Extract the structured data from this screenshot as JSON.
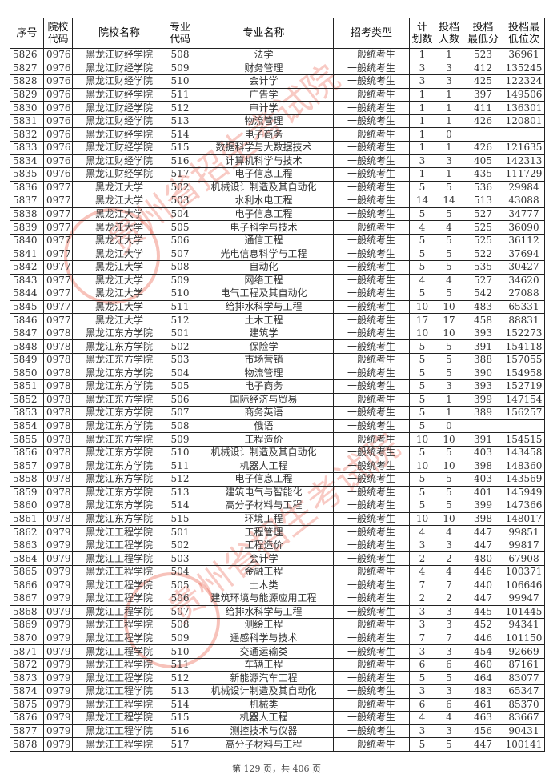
{
  "headers": [
    "序号",
    "院校\n代码",
    "院校名称",
    "专业\n代码",
    "专业名称",
    "招考类型",
    "计\n划数",
    "投档\n人数",
    "投档\n最低分",
    "投档最\n低位次"
  ],
  "rows": [
    [
      "5826",
      "0976",
      "黑龙江财经学院",
      "508",
      "法学",
      "一般统考生",
      "1",
      "1",
      "523",
      "36961"
    ],
    [
      "5827",
      "0976",
      "黑龙江财经学院",
      "509",
      "财务管理",
      "一般统考生",
      "3",
      "3",
      "412",
      "135245"
    ],
    [
      "5828",
      "0976",
      "黑龙江财经学院",
      "510",
      "会计学",
      "一般统考生",
      "3",
      "3",
      "425",
      "122324"
    ],
    [
      "5829",
      "0976",
      "黑龙江财经学院",
      "511",
      "广告学",
      "一般统考生",
      "1",
      "1",
      "397",
      "149506"
    ],
    [
      "5830",
      "0976",
      "黑龙江财经学院",
      "512",
      "审计学",
      "一般统考生",
      "1",
      "1",
      "411",
      "136301"
    ],
    [
      "5831",
      "0976",
      "黑龙江财经学院",
      "513",
      "物流管理",
      "一般统考生",
      "1",
      "1",
      "426",
      "120801"
    ],
    [
      "5832",
      "0976",
      "黑龙江财经学院",
      "514",
      "电子商务",
      "一般统考生",
      "1",
      "0",
      "",
      ""
    ],
    [
      "5833",
      "0976",
      "黑龙江财经学院",
      "515",
      "数据科学与大数据技术",
      "一般统考生",
      "1",
      "1",
      "426",
      "121635"
    ],
    [
      "5834",
      "0976",
      "黑龙江财经学院",
      "516",
      "计算机科学与技术",
      "一般统考生",
      "3",
      "3",
      "405",
      "142313"
    ],
    [
      "5835",
      "0976",
      "黑龙江财经学院",
      "517",
      "电子信息工程",
      "一般统考生",
      "1",
      "1",
      "435",
      "111729"
    ],
    [
      "5836",
      "0977",
      "黑龙江大学",
      "502",
      "机械设计制造及其自动化",
      "一般统考生",
      "5",
      "5",
      "536",
      "29984"
    ],
    [
      "5837",
      "0977",
      "黑龙江大学",
      "503",
      "水利水电工程",
      "一般统考生",
      "14",
      "14",
      "513",
      "43088"
    ],
    [
      "5838",
      "0977",
      "黑龙江大学",
      "504",
      "电子信息工程",
      "一般统考生",
      "5",
      "5",
      "527",
      "34777"
    ],
    [
      "5839",
      "0977",
      "黑龙江大学",
      "505",
      "电子科学与技术",
      "一般统考生",
      "4",
      "4",
      "525",
      "36090"
    ],
    [
      "5840",
      "0977",
      "黑龙江大学",
      "506",
      "通信工程",
      "一般统考生",
      "5",
      "5",
      "525",
      "36112"
    ],
    [
      "5841",
      "0977",
      "黑龙江大学",
      "507",
      "光电信息科学与工程",
      "一般统考生",
      "5",
      "5",
      "522",
      "37694"
    ],
    [
      "5842",
      "0977",
      "黑龙江大学",
      "508",
      "自动化",
      "一般统考生",
      "5",
      "5",
      "535",
      "30427"
    ],
    [
      "5843",
      "0977",
      "黑龙江大学",
      "509",
      "网络工程",
      "一般统考生",
      "4",
      "4",
      "527",
      "34620"
    ],
    [
      "5844",
      "0977",
      "黑龙江大学",
      "510",
      "电气工程及其自动化",
      "一般统考生",
      "5",
      "5",
      "542",
      "27088"
    ],
    [
      "5845",
      "0977",
      "黑龙江大学",
      "511",
      "给排水科学与工程",
      "一般统考生",
      "10",
      "10",
      "483",
      "65331"
    ],
    [
      "5846",
      "0977",
      "黑龙江大学",
      "512",
      "土木工程",
      "一般统考生",
      "17",
      "17",
      "458",
      "88831"
    ],
    [
      "5847",
      "0978",
      "黑龙江东方学院",
      "501",
      "建筑学",
      "一般统考生",
      "10",
      "10",
      "393",
      "152273"
    ],
    [
      "5848",
      "0978",
      "黑龙江东方学院",
      "502",
      "保险学",
      "一般统考生",
      "5",
      "5",
      "391",
      "154118"
    ],
    [
      "5849",
      "0978",
      "黑龙江东方学院",
      "503",
      "市场营销",
      "一般统考生",
      "5",
      "5",
      "388",
      "157055"
    ],
    [
      "5850",
      "0978",
      "黑龙江东方学院",
      "504",
      "物流管理",
      "一般统考生",
      "5",
      "5",
      "390",
      "154958"
    ],
    [
      "5851",
      "0978",
      "黑龙江东方学院",
      "505",
      "电子商务",
      "一般统考生",
      "5",
      "3",
      "393",
      "152719"
    ],
    [
      "5852",
      "0978",
      "黑龙江东方学院",
      "506",
      "国际经济与贸易",
      "一般统考生",
      "5",
      "1",
      "399",
      "147154"
    ],
    [
      "5853",
      "0978",
      "黑龙江东方学院",
      "507",
      "商务英语",
      "一般统考生",
      "5",
      "1",
      "389",
      "156257"
    ],
    [
      "5854",
      "0978",
      "黑龙江东方学院",
      "508",
      "俄语",
      "一般统考生",
      "5",
      "0",
      "",
      ""
    ],
    [
      "5855",
      "0978",
      "黑龙江东方学院",
      "509",
      "工程造价",
      "一般统考生",
      "10",
      "10",
      "391",
      "154515"
    ],
    [
      "5856",
      "0978",
      "黑龙江东方学院",
      "510",
      "机械设计制造及其自动化",
      "一般统考生",
      "5",
      "5",
      "403",
      "143458"
    ],
    [
      "5857",
      "0978",
      "黑龙江东方学院",
      "511",
      "机器人工程",
      "一般统考生",
      "10",
      "10",
      "398",
      "148360"
    ],
    [
      "5858",
      "0978",
      "黑龙江东方学院",
      "512",
      "电子信息工程",
      "一般统考生",
      "5",
      "5",
      "403",
      "143569"
    ],
    [
      "5859",
      "0978",
      "黑龙江东方学院",
      "513",
      "建筑电气与智能化",
      "一般统考生",
      "5",
      "5",
      "401",
      "145949"
    ],
    [
      "5860",
      "0978",
      "黑龙江东方学院",
      "514",
      "高分子材料与工程",
      "一般统考生",
      "5",
      "5",
      "399",
      "147366"
    ],
    [
      "5861",
      "0978",
      "黑龙江东方学院",
      "515",
      "环境工程",
      "一般统考生",
      "10",
      "10",
      "398",
      "148017"
    ],
    [
      "5862",
      "0979",
      "黑龙江工程学院",
      "501",
      "工程管理",
      "一般统考生",
      "4",
      "4",
      "447",
      "99851"
    ],
    [
      "5863",
      "0979",
      "黑龙江工程学院",
      "502",
      "工程造价",
      "一般统考生",
      "3",
      "3",
      "447",
      "99817"
    ],
    [
      "5864",
      "0979",
      "黑龙江工程学院",
      "503",
      "会计学",
      "一般统考生",
      "2",
      "2",
      "480",
      "67908"
    ],
    [
      "5865",
      "0979",
      "黑龙江工程学院",
      "504",
      "金融工程",
      "一般统考生",
      "4",
      "4",
      "446",
      "100371"
    ],
    [
      "5866",
      "0979",
      "黑龙江工程学院",
      "505",
      "土木类",
      "一般统考生",
      "7",
      "7",
      "440",
      "106646"
    ],
    [
      "5867",
      "0979",
      "黑龙江工程学院",
      "506",
      "建筑环境与能源应用工程",
      "一般统考生",
      "2",
      "2",
      "447",
      "99947"
    ],
    [
      "5868",
      "0979",
      "黑龙江工程学院",
      "507",
      "给排水科学与工程",
      "一般统考生",
      "3",
      "3",
      "445",
      "101445"
    ],
    [
      "5869",
      "0979",
      "黑龙江工程学院",
      "508",
      "测绘工程",
      "一般统考生",
      "3",
      "3",
      "452",
      "94341"
    ],
    [
      "5870",
      "0979",
      "黑龙江工程学院",
      "509",
      "遥感科学与技术",
      "一般统考生",
      "7",
      "7",
      "446",
      "101150"
    ],
    [
      "5871",
      "0979",
      "黑龙江工程学院",
      "510",
      "交通运输类",
      "一般统考生",
      "3",
      "3",
      "454",
      "92669"
    ],
    [
      "5872",
      "0979",
      "黑龙江工程学院",
      "511",
      "车辆工程",
      "一般统考生",
      "6",
      "6",
      "460",
      "87161"
    ],
    [
      "5873",
      "0979",
      "黑龙江工程学院",
      "512",
      "新能源汽车工程",
      "一般统考生",
      "5",
      "5",
      "464",
      "83077"
    ],
    [
      "5874",
      "0979",
      "黑龙江工程学院",
      "513",
      "机械设计制造及其自动化",
      "一般统考生",
      "3",
      "3",
      "483",
      "65347"
    ],
    [
      "5875",
      "0979",
      "黑龙江工程学院",
      "514",
      "机械类",
      "一般统考生",
      "6",
      "6",
      "461",
      "85370"
    ],
    [
      "5876",
      "0979",
      "黑龙江工程学院",
      "515",
      "机器人工程",
      "一般统考生",
      "4",
      "4",
      "463",
      "83667"
    ],
    [
      "5877",
      "0979",
      "黑龙江工程学院",
      "516",
      "测控技术与仪器",
      "一般统考生",
      "3",
      "3",
      "456",
      "90431"
    ],
    [
      "5878",
      "0979",
      "黑龙江工程学院",
      "517",
      "高分子材料与工程",
      "一般统考生",
      "5",
      "5",
      "447",
      "100141"
    ]
  ],
  "footer": "第 129 页，共 406 页",
  "watermark": {
    "text": "贵州省招生考试院",
    "color": "#e8503a"
  }
}
